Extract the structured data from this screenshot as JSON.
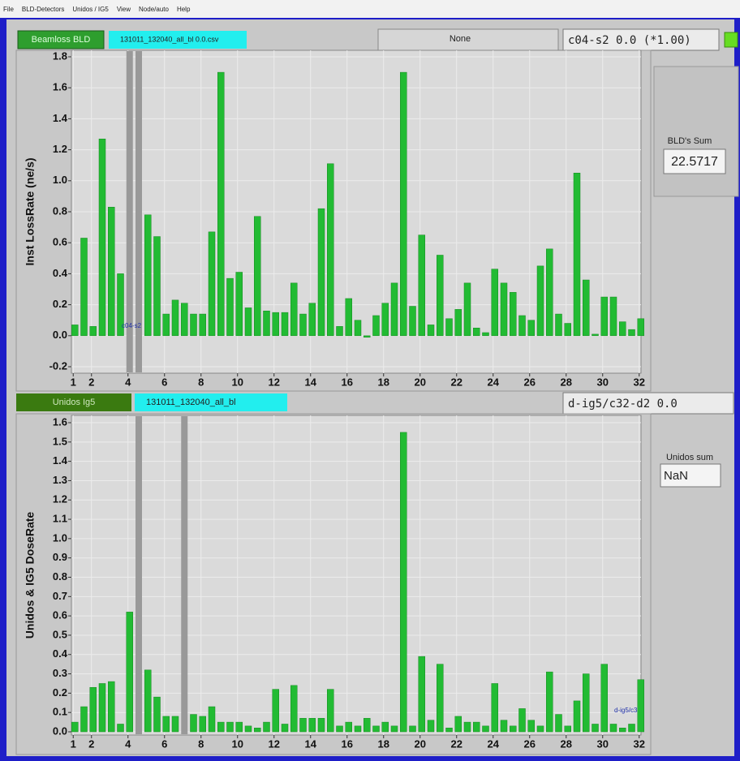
{
  "menu": [
    "File",
    "BLD-Detectors",
    "Unidos / IG5",
    "View",
    "Node/auto",
    "Help"
  ],
  "top_panel": {
    "button": "Beamloss BLD",
    "file": "131011_132040_all_bl   0.0.csv",
    "dropdown": "None",
    "cursor_field": "c04-s2  0.0  (*1.00)",
    "sum_label": "BLD's Sum",
    "sum_value": "22.5717"
  },
  "bottom_panel": {
    "button": "Unidos Ig5",
    "file": "131011_132040_all_bl",
    "cursor_field": "d-ig5/c32-d2  0.0",
    "sum_label": "Unidos sum",
    "sum_value": "NaN"
  },
  "chart_data": [
    {
      "type": "bar",
      "y_label": "Inst LossRate (ne/s)",
      "annotation": "c04-s2",
      "color": "#22bb33",
      "grid": true,
      "x": [
        1,
        1.5,
        2,
        2.5,
        3,
        3.5,
        4,
        4.5,
        5,
        5.5,
        6,
        6.5,
        7,
        7.5,
        8,
        8.5,
        9,
        9.5,
        10,
        10.5,
        11,
        11.5,
        12,
        12.5,
        13,
        13.5,
        14,
        14.5,
        15,
        15.5,
        16,
        16.5,
        17,
        17.5,
        18,
        18.5,
        19,
        19.5,
        20,
        20.5,
        21,
        21.5,
        22,
        22.5,
        23,
        23.5,
        24,
        24.5,
        25,
        25.5,
        26,
        26.5,
        27,
        27.5,
        28,
        28.5,
        29,
        29.5,
        30,
        30.5,
        31,
        31.5,
        32
      ],
      "values": [
        0.07,
        0.63,
        0.06,
        1.27,
        0.83,
        0.4,
        null,
        null,
        0.78,
        0.64,
        0.14,
        0.23,
        0.21,
        0.14,
        0.14,
        0.67,
        1.7,
        0.37,
        0.41,
        0.18,
        0.77,
        0.16,
        0.15,
        0.15,
        0.34,
        0.14,
        0.21,
        0.82,
        1.11,
        0.06,
        0.24,
        0.1,
        -0.01,
        0.13,
        0.21,
        0.34,
        1.7,
        0.19,
        0.65,
        0.07,
        0.52,
        0.11,
        0.17,
        0.34,
        0.05,
        0.02,
        0.43,
        0.34,
        0.28,
        0.13,
        0.1,
        0.45,
        0.56,
        0.14,
        0.08,
        1.05,
        0.36,
        0.01,
        0.25,
        0.25,
        0.09,
        0.04,
        0.11
      ],
      "xlim": [
        0.9,
        32.1
      ],
      "ylim": [
        -0.2,
        1.8
      ],
      "xticks": [
        1,
        2,
        4,
        6,
        8,
        10,
        12,
        14,
        16,
        18,
        20,
        22,
        24,
        26,
        28,
        30,
        32
      ],
      "yticks": [
        -0.2,
        {
          "value": 0,
          "label": "0.0"
        },
        0.2,
        0.4,
        0.6,
        0.8,
        {
          "value": 1,
          "label": "1.0"
        },
        1.2,
        1.4,
        1.6,
        1.8
      ]
    },
    {
      "type": "bar",
      "y_label": "Unidos & IG5 DoseRate",
      "annotation": "d-ig5/c3",
      "color": "#22bb33",
      "grid": true,
      "x": [
        1,
        1.5,
        2,
        2.5,
        3,
        3.5,
        4,
        4.5,
        5,
        5.5,
        6,
        6.5,
        7,
        7.5,
        8,
        8.5,
        9,
        9.5,
        10,
        10.5,
        11,
        11.5,
        12,
        12.5,
        13,
        13.5,
        14,
        14.5,
        15,
        15.5,
        16,
        16.5,
        17,
        17.5,
        18,
        18.5,
        19,
        19.5,
        20,
        20.5,
        21,
        21.5,
        22,
        22.5,
        23,
        23.5,
        24,
        24.5,
        25,
        25.5,
        26,
        26.5,
        27,
        27.5,
        28,
        28.5,
        29,
        29.5,
        30,
        30.5,
        31,
        31.5,
        32
      ],
      "values": [
        0.05,
        0.13,
        0.23,
        0.25,
        0.26,
        0.04,
        0.62,
        null,
        0.32,
        0.18,
        0.08,
        0.08,
        null,
        0.09,
        0.08,
        0.13,
        0.05,
        0.05,
        0.05,
        0.03,
        0.02,
        0.05,
        0.22,
        0.04,
        0.24,
        0.07,
        0.07,
        0.07,
        0.22,
        0.03,
        0.05,
        0.03,
        0.07,
        0.03,
        0.05,
        0.03,
        1.55,
        0.03,
        0.39,
        0.06,
        0.35,
        0.02,
        0.08,
        0.05,
        0.05,
        0.03,
        0.25,
        0.06,
        0.03,
        0.12,
        0.06,
        0.03,
        0.31,
        0.09,
        0.03,
        0.16,
        0.3,
        0.04,
        0.35,
        0.04,
        0.02,
        0.04,
        0.27
      ],
      "xlim": [
        0.9,
        32.1
      ],
      "ylim": [
        0,
        1.6
      ],
      "xticks": [
        1,
        2,
        4,
        6,
        8,
        10,
        12,
        14,
        16,
        18,
        20,
        22,
        24,
        26,
        28,
        30,
        32
      ],
      "yticks": [
        {
          "value": 0,
          "label": "0.0"
        },
        0.1,
        0.2,
        0.3,
        0.4,
        0.5,
        0.6,
        0.7,
        0.8,
        0.9,
        {
          "value": 1,
          "label": "1.0"
        },
        1.1,
        1.2,
        1.3,
        1.4,
        1.5,
        1.6
      ]
    }
  ]
}
